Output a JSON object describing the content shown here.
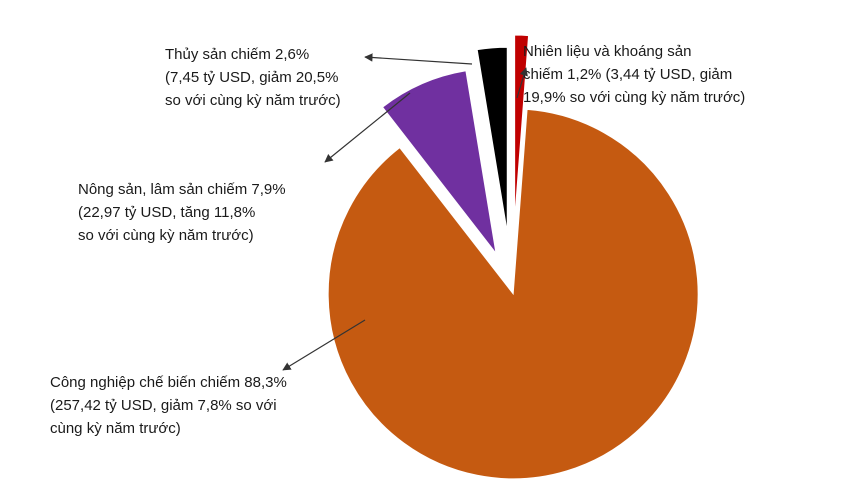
{
  "chart_data": {
    "type": "pie",
    "labels": [
      [
        "Nhiên liệu và khoáng sản",
        "chiếm 1,2% (3,44 tỷ USD, giảm",
        "19,9% so với cùng kỳ năm trước)"
      ],
      [
        "Công nghiệp chế biến chiếm 88,3%",
        "(257,42 tỷ USD, giảm 7,8% so với",
        "cùng kỳ năm trước)"
      ],
      [
        "Nông sản, lâm sản chiếm 7,9%",
        "(22,97 tỷ USD, tăng 11,8%",
        "so với cùng kỳ năm trước)"
      ],
      [
        "Thủy sản chiếm 2,6%",
        "(7,45 tỷ USD, giảm 20,5%",
        "so với cùng kỳ năm trước)"
      ]
    ],
    "values": [
      1.2,
      88.3,
      7.9,
      2.6
    ],
    "colors": [
      "#c00000",
      "#c55a11",
      "#7030a0",
      "#000000"
    ]
  }
}
